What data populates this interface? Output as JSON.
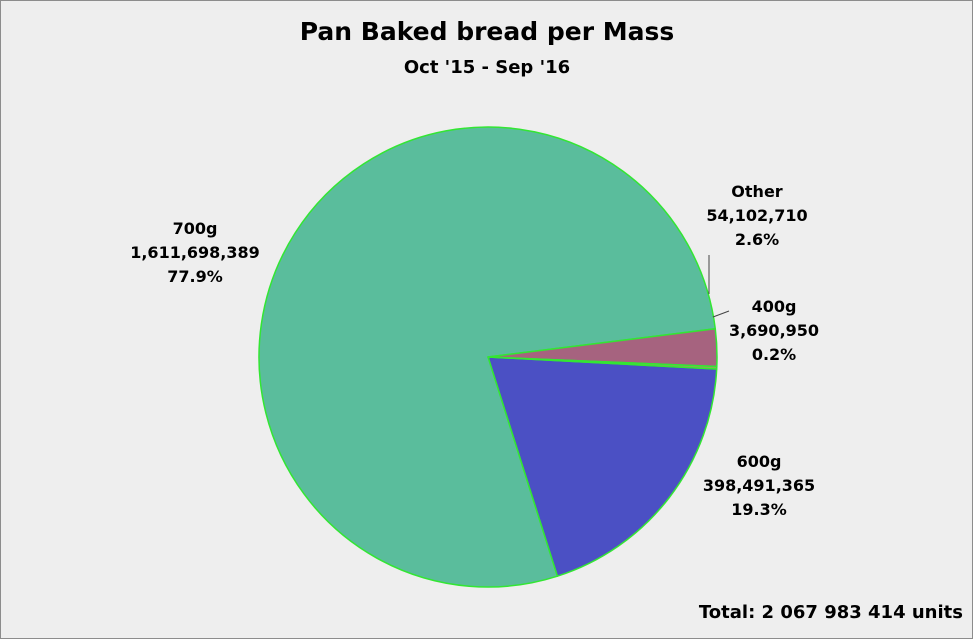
{
  "chart_data": {
    "type": "pie",
    "title": "Pan Baked bread per Mass",
    "subtitle": "Oct '15 - Sep '16",
    "total_label": "Total: 2 067 983 414 units",
    "slices": [
      {
        "label": "600g",
        "value_text": "398,491,365",
        "percent_text": "19.3%",
        "value": 398491365,
        "color": "#4b50c4"
      },
      {
        "label": "700g",
        "value_text": "1,611,698,389",
        "percent_text": "77.9%",
        "value": 1611698389,
        "color": "#5abd9c"
      },
      {
        "label": "Other",
        "value_text": "54,102,710",
        "percent_text": "2.6%",
        "value": 54102710,
        "color": "#a6637f"
      },
      {
        "label": "400g",
        "value_text": "3,690,950",
        "percent_text": "0.2%",
        "value": 3690950,
        "color": "#96a85a"
      }
    ],
    "border_color": "#33e633"
  }
}
